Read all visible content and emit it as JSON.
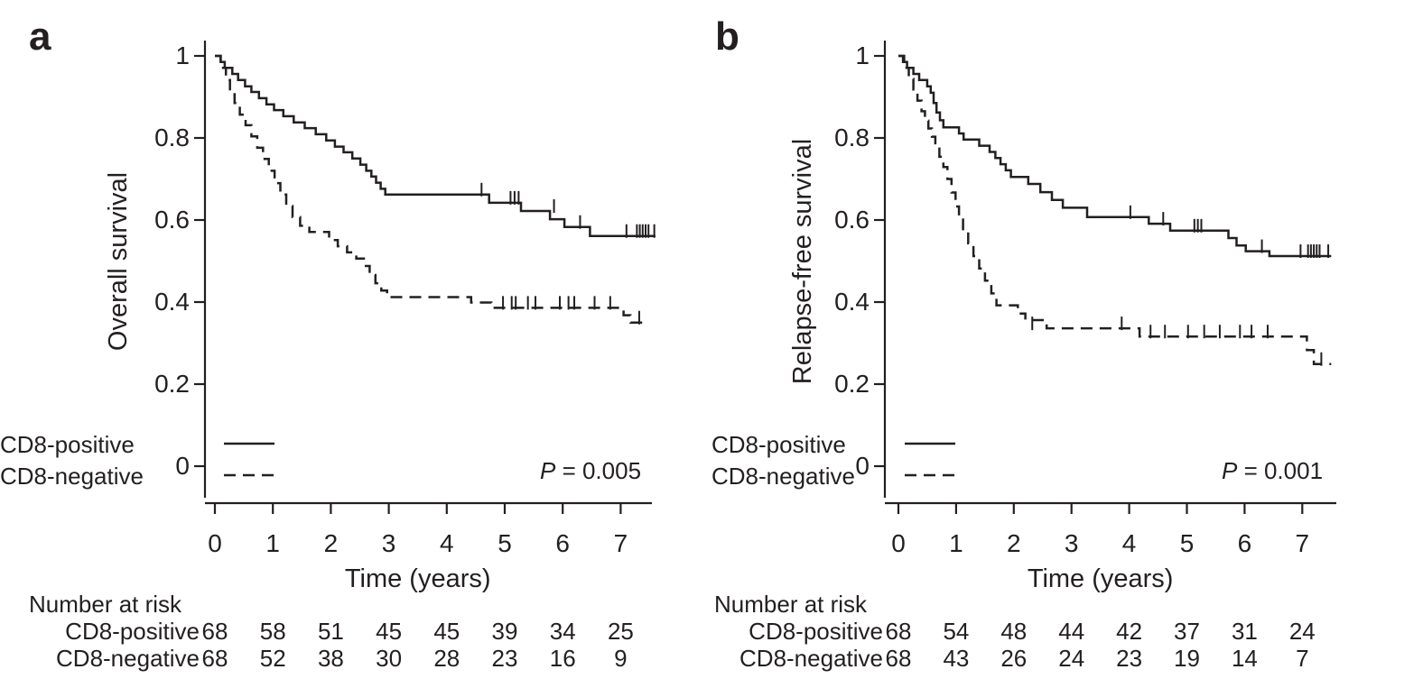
{
  "figure": {
    "background": "#ffffff",
    "text_color": "#231f20",
    "curve_color": "#231f20"
  },
  "chart_data": [
    {
      "type": "line",
      "subtype": "kaplan_meier_step",
      "panel_label": "a",
      "title": "",
      "xlabel": "Time (years)",
      "ylabel": "Overall survival",
      "xlim": [
        0,
        7.6
      ],
      "ylim": [
        0,
        1
      ],
      "grid": false,
      "legend_position": "inside-bottom-left",
      "x_ticks": [
        0,
        1,
        2,
        3,
        4,
        5,
        6,
        7
      ],
      "y_ticks": [
        {
          "value": 1,
          "label": "1"
        },
        {
          "value": 0.8,
          "label": "0.8"
        },
        {
          "value": 0.6,
          "label": "0.6"
        },
        {
          "value": 0.4,
          "label": "0.4"
        },
        {
          "value": 0.2,
          "label": "0.2"
        },
        {
          "value": 0,
          "label": "0"
        }
      ],
      "p_value": {
        "symbol": "P",
        "text": "= 0.005"
      },
      "legend": [
        {
          "label": "CD8-positive",
          "line_style": "solid"
        },
        {
          "label": "CD8-negative",
          "line_style": "dashed"
        }
      ],
      "series": [
        {
          "name": "CD8-positive",
          "line_style": "solid",
          "steps": [
            [
              0,
              1
            ],
            [
              0.1,
              0.985
            ],
            [
              0.17,
              0.971
            ],
            [
              0.3,
              0.956
            ],
            [
              0.4,
              0.941
            ],
            [
              0.52,
              0.926
            ],
            [
              0.63,
              0.912
            ],
            [
              0.76,
              0.897
            ],
            [
              0.89,
              0.882
            ],
            [
              1.02,
              0.868
            ],
            [
              1.18,
              0.853
            ],
            [
              1.36,
              0.838
            ],
            [
              1.55,
              0.824
            ],
            [
              1.74,
              0.809
            ],
            [
              1.92,
              0.794
            ],
            [
              2.07,
              0.779
            ],
            [
              2.22,
              0.765
            ],
            [
              2.37,
              0.75
            ],
            [
              2.51,
              0.735
            ],
            [
              2.61,
              0.72
            ],
            [
              2.7,
              0.706
            ],
            [
              2.78,
              0.691
            ],
            [
              2.86,
              0.676
            ],
            [
              2.94,
              0.662
            ],
            [
              4.73,
              0.642
            ],
            [
              5.28,
              0.622
            ],
            [
              5.78,
              0.602
            ],
            [
              6.03,
              0.583
            ],
            [
              6.47,
              0.561
            ],
            [
              7.6,
              0.561
            ]
          ],
          "censor_marks": [
            [
              4.6,
              0.662
            ],
            [
              5.1,
              0.642
            ],
            [
              5.17,
              0.642
            ],
            [
              5.24,
              0.642
            ],
            [
              5.85,
              0.622
            ],
            [
              6.3,
              0.583
            ],
            [
              7.1,
              0.561
            ],
            [
              7.28,
              0.561
            ],
            [
              7.33,
              0.561
            ],
            [
              7.38,
              0.561
            ],
            [
              7.43,
              0.561
            ],
            [
              7.48,
              0.561
            ],
            [
              7.58,
              0.561
            ]
          ]
        },
        {
          "name": "CD8-negative",
          "line_style": "dashed",
          "steps": [
            [
              0,
              1
            ],
            [
              0.1,
              0.971
            ],
            [
              0.19,
              0.941
            ],
            [
              0.26,
              0.912
            ],
            [
              0.34,
              0.885
            ],
            [
              0.43,
              0.857
            ],
            [
              0.53,
              0.831
            ],
            [
              0.63,
              0.804
            ],
            [
              0.73,
              0.776
            ],
            [
              0.83,
              0.749
            ],
            [
              0.93,
              0.72
            ],
            [
              1.03,
              0.69
            ],
            [
              1.13,
              0.662
            ],
            [
              1.23,
              0.634
            ],
            [
              1.34,
              0.607
            ],
            [
              1.47,
              0.586
            ],
            [
              1.63,
              0.571
            ],
            [
              1.97,
              0.551
            ],
            [
              2.12,
              0.536
            ],
            [
              2.28,
              0.521
            ],
            [
              2.44,
              0.506
            ],
            [
              2.57,
              0.488
            ],
            [
              2.67,
              0.466
            ],
            [
              2.77,
              0.446
            ],
            [
              2.87,
              0.428
            ],
            [
              2.97,
              0.412
            ],
            [
              4.42,
              0.399
            ],
            [
              4.77,
              0.386
            ],
            [
              7.05,
              0.368
            ],
            [
              7.17,
              0.35
            ],
            [
              7.4,
              0.35
            ]
          ],
          "censor_marks": [
            [
              4.97,
              0.386
            ],
            [
              5.12,
              0.386
            ],
            [
              5.19,
              0.386
            ],
            [
              5.4,
              0.386
            ],
            [
              5.53,
              0.386
            ],
            [
              5.95,
              0.386
            ],
            [
              6.1,
              0.386
            ],
            [
              6.2,
              0.386
            ],
            [
              6.55,
              0.386
            ],
            [
              6.82,
              0.386
            ],
            [
              7.32,
              0.35
            ]
          ]
        }
      ],
      "risk_table": {
        "title": "Number at risk",
        "rows": [
          {
            "label": "CD8-positive",
            "values": [
              68,
              58,
              51,
              45,
              45,
              39,
              34,
              25
            ]
          },
          {
            "label": "CD8-negative",
            "values": [
              68,
              52,
              38,
              30,
              28,
              23,
              16,
              9
            ]
          }
        ]
      }
    },
    {
      "type": "line",
      "subtype": "kaplan_meier_step",
      "panel_label": "b",
      "title": "",
      "xlabel": "Time (years)",
      "ylabel": "Relapse-free survival",
      "xlim": [
        0,
        7.6
      ],
      "ylim": [
        0,
        1
      ],
      "grid": false,
      "legend_position": "inside-bottom-left",
      "x_ticks": [
        0,
        1,
        2,
        3,
        4,
        5,
        6,
        7
      ],
      "y_ticks": [
        {
          "value": 1,
          "label": "1"
        },
        {
          "value": 0.8,
          "label": "0.8"
        },
        {
          "value": 0.6,
          "label": "0.6"
        },
        {
          "value": 0.4,
          "label": "0.4"
        },
        {
          "value": 0.2,
          "label": "0.2"
        },
        {
          "value": 0,
          "label": "0"
        }
      ],
      "p_value": {
        "symbol": "P",
        "text": "= 0.001"
      },
      "legend": [
        {
          "label": "CD8-positive",
          "line_style": "solid"
        },
        {
          "label": "CD8-negative",
          "line_style": "dashed"
        }
      ],
      "series": [
        {
          "name": "CD8-positive",
          "line_style": "solid",
          "steps": [
            [
              0,
              1
            ],
            [
              0.08,
              0.985
            ],
            [
              0.15,
              0.971
            ],
            [
              0.26,
              0.956
            ],
            [
              0.36,
              0.941
            ],
            [
              0.5,
              0.926
            ],
            [
              0.56,
              0.91
            ],
            [
              0.61,
              0.885
            ],
            [
              0.66,
              0.862
            ],
            [
              0.72,
              0.843
            ],
            [
              0.78,
              0.826
            ],
            [
              1.05,
              0.811
            ],
            [
              1.13,
              0.796
            ],
            [
              1.4,
              0.781
            ],
            [
              1.58,
              0.766
            ],
            [
              1.68,
              0.751
            ],
            [
              1.77,
              0.736
            ],
            [
              1.86,
              0.721
            ],
            [
              1.95,
              0.705
            ],
            [
              2.25,
              0.688
            ],
            [
              2.46,
              0.668
            ],
            [
              2.66,
              0.649
            ],
            [
              2.85,
              0.63
            ],
            [
              3.27,
              0.607
            ],
            [
              4.34,
              0.591
            ],
            [
              4.71,
              0.574
            ],
            [
              5.72,
              0.556
            ],
            [
              5.86,
              0.538
            ],
            [
              6.02,
              0.524
            ],
            [
              6.43,
              0.512
            ],
            [
              7.5,
              0.512
            ]
          ],
          "censor_marks": [
            [
              4.02,
              0.607
            ],
            [
              4.59,
              0.591
            ],
            [
              5.13,
              0.574
            ],
            [
              5.19,
              0.574
            ],
            [
              5.25,
              0.574
            ],
            [
              6.3,
              0.524
            ],
            [
              6.97,
              0.512
            ],
            [
              7.1,
              0.512
            ],
            [
              7.15,
              0.512
            ],
            [
              7.2,
              0.512
            ],
            [
              7.25,
              0.512
            ],
            [
              7.3,
              0.512
            ],
            [
              7.45,
              0.512
            ]
          ]
        },
        {
          "name": "CD8-negative",
          "line_style": "dashed",
          "steps": [
            [
              0,
              1
            ],
            [
              0.1,
              0.971
            ],
            [
              0.18,
              0.944
            ],
            [
              0.26,
              0.918
            ],
            [
              0.33,
              0.891
            ],
            [
              0.4,
              0.865
            ],
            [
              0.46,
              0.842
            ],
            [
              0.52,
              0.823
            ],
            [
              0.58,
              0.803
            ],
            [
              0.64,
              0.779
            ],
            [
              0.71,
              0.754
            ],
            [
              0.78,
              0.729
            ],
            [
              0.85,
              0.7
            ],
            [
              0.92,
              0.667
            ],
            [
              0.99,
              0.633
            ],
            [
              1.05,
              0.601
            ],
            [
              1.12,
              0.572
            ],
            [
              1.21,
              0.543
            ],
            [
              1.3,
              0.512
            ],
            [
              1.4,
              0.482
            ],
            [
              1.5,
              0.452
            ],
            [
              1.61,
              0.421
            ],
            [
              1.7,
              0.392
            ],
            [
              2.07,
              0.372
            ],
            [
              2.2,
              0.356
            ],
            [
              2.57,
              0.336
            ],
            [
              4.18,
              0.316
            ],
            [
              7.08,
              0.283
            ],
            [
              7.2,
              0.249
            ],
            [
              7.5,
              0.249
            ]
          ],
          "censor_marks": [
            [
              2.32,
              0.336
            ],
            [
              3.87,
              0.336
            ],
            [
              4.37,
              0.316
            ],
            [
              4.62,
              0.316
            ],
            [
              5.02,
              0.316
            ],
            [
              5.3,
              0.316
            ],
            [
              5.57,
              0.316
            ],
            [
              5.92,
              0.316
            ],
            [
              6.12,
              0.316
            ],
            [
              6.4,
              0.316
            ],
            [
              7.33,
              0.249
            ]
          ]
        }
      ],
      "risk_table": {
        "title": "Number at risk",
        "rows": [
          {
            "label": "CD8-positive",
            "values": [
              68,
              54,
              48,
              44,
              42,
              37,
              31,
              24
            ]
          },
          {
            "label": "CD8-negative",
            "values": [
              68,
              43,
              26,
              24,
              23,
              19,
              14,
              7
            ]
          }
        ]
      }
    }
  ]
}
